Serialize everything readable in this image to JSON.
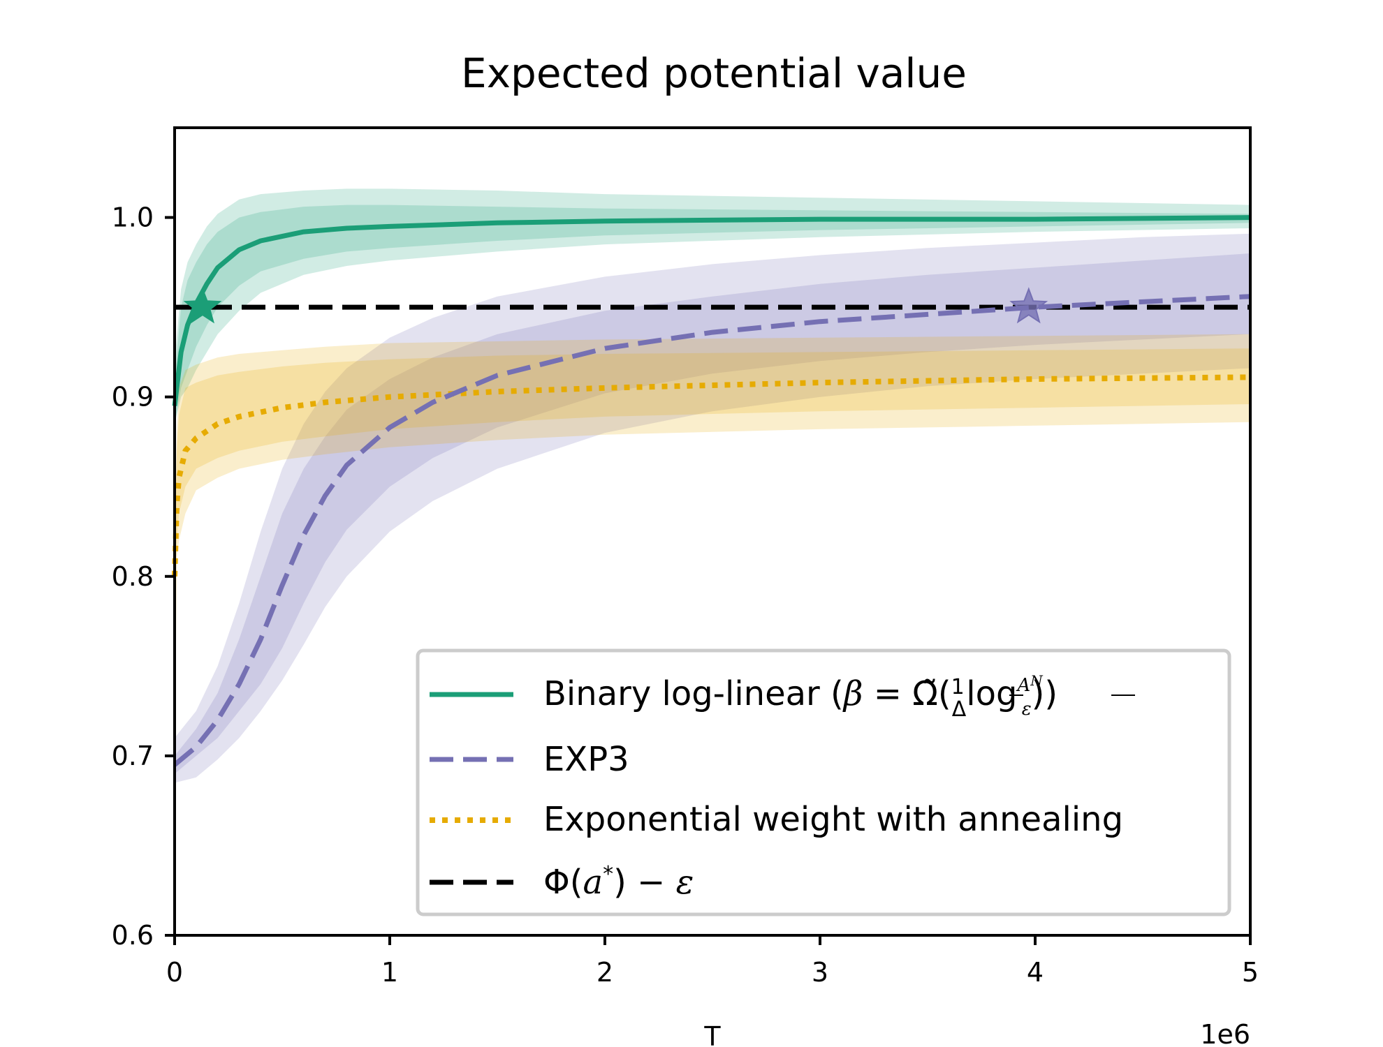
{
  "chart_data": {
    "type": "line",
    "title": "Expected potential value",
    "xlabel": "T",
    "ylabel": "",
    "x_offset_label": "1e6",
    "xlim": [
      0,
      5
    ],
    "ylim": [
      0.6,
      1.05
    ],
    "x_ticks": [
      0,
      1,
      2,
      3,
      4,
      5
    ],
    "x_tick_labels": [
      "0",
      "1",
      "2",
      "3",
      "4",
      "5"
    ],
    "y_ticks": [
      0.6,
      0.7,
      0.8,
      0.9,
      1.0
    ],
    "y_tick_labels": [
      "0.6",
      "0.7",
      "0.8",
      "0.9",
      "1.0"
    ],
    "grid": false,
    "legend_position": "lower-right",
    "series": [
      {
        "name": "Binary log-linear (β = Ω̃(1/Δ log A^N/ε))",
        "style": "solid",
        "color": "#1b9e77",
        "x": [
          0,
          0.03,
          0.06,
          0.1,
          0.15,
          0.2,
          0.3,
          0.4,
          0.6,
          0.8,
          1.0,
          1.5,
          2.0,
          3.0,
          4.0,
          5.0
        ],
        "y": [
          0.895,
          0.925,
          0.94,
          0.952,
          0.963,
          0.972,
          0.982,
          0.987,
          0.992,
          0.994,
          0.995,
          0.997,
          0.998,
          0.999,
          0.999,
          1.0
        ],
        "band_inner": [
          [
            0.91,
            0.885
          ],
          [
            0.95,
            0.905
          ],
          [
            0.965,
            0.915
          ],
          [
            0.975,
            0.928
          ],
          [
            0.985,
            0.94
          ],
          [
            0.992,
            0.95
          ],
          [
            1.0,
            0.962
          ],
          [
            1.003,
            0.97
          ],
          [
            1.006,
            0.977
          ],
          [
            1.007,
            0.981
          ],
          [
            1.007,
            0.983
          ],
          [
            1.006,
            0.987
          ],
          [
            1.005,
            0.99
          ],
          [
            1.004,
            0.993
          ],
          [
            1.003,
            0.995
          ],
          [
            1.002,
            0.997
          ]
        ],
        "band_outer": [
          [
            0.92,
            0.885
          ],
          [
            0.96,
            0.9
          ],
          [
            0.975,
            0.905
          ],
          [
            0.985,
            0.915
          ],
          [
            0.995,
            0.925
          ],
          [
            1.002,
            0.935
          ],
          [
            1.01,
            0.948
          ],
          [
            1.013,
            0.958
          ],
          [
            1.015,
            0.968
          ],
          [
            1.016,
            0.973
          ],
          [
            1.016,
            0.976
          ],
          [
            1.015,
            0.981
          ],
          [
            1.013,
            0.985
          ],
          [
            1.011,
            0.989
          ],
          [
            1.009,
            0.992
          ],
          [
            1.007,
            0.994
          ]
        ],
        "marker": {
          "shape": "star",
          "x": 0.13,
          "y": 0.95
        }
      },
      {
        "name": "EXP3",
        "style": "dashed",
        "color": "#7570b3",
        "x": [
          0,
          0.1,
          0.2,
          0.3,
          0.4,
          0.5,
          0.6,
          0.7,
          0.8,
          1.0,
          1.2,
          1.5,
          2.0,
          2.5,
          3.0,
          3.5,
          4.0,
          4.5,
          5.0
        ],
        "y": [
          0.695,
          0.705,
          0.72,
          0.74,
          0.765,
          0.795,
          0.823,
          0.845,
          0.862,
          0.883,
          0.897,
          0.912,
          0.927,
          0.936,
          0.942,
          0.946,
          0.95,
          0.953,
          0.956
        ],
        "band_inner": [
          [
            0.7,
            0.69
          ],
          [
            0.715,
            0.7
          ],
          [
            0.735,
            0.71
          ],
          [
            0.765,
            0.725
          ],
          [
            0.8,
            0.74
          ],
          [
            0.835,
            0.76
          ],
          [
            0.86,
            0.785
          ],
          [
            0.878,
            0.808
          ],
          [
            0.893,
            0.826
          ],
          [
            0.91,
            0.85
          ],
          [
            0.922,
            0.866
          ],
          [
            0.935,
            0.883
          ],
          [
            0.948,
            0.902
          ],
          [
            0.956,
            0.913
          ],
          [
            0.963,
            0.92
          ],
          [
            0.968,
            0.925
          ],
          [
            0.972,
            0.929
          ],
          [
            0.976,
            0.932
          ],
          [
            0.98,
            0.935
          ]
        ],
        "band_outer": [
          [
            0.71,
            0.685
          ],
          [
            0.725,
            0.688
          ],
          [
            0.75,
            0.698
          ],
          [
            0.785,
            0.71
          ],
          [
            0.825,
            0.725
          ],
          [
            0.86,
            0.742
          ],
          [
            0.885,
            0.762
          ],
          [
            0.903,
            0.783
          ],
          [
            0.916,
            0.8
          ],
          [
            0.933,
            0.825
          ],
          [
            0.944,
            0.842
          ],
          [
            0.956,
            0.86
          ],
          [
            0.967,
            0.88
          ],
          [
            0.974,
            0.892
          ],
          [
            0.979,
            0.9
          ],
          [
            0.983,
            0.906
          ],
          [
            0.986,
            0.91
          ],
          [
            0.989,
            0.913
          ],
          [
            0.991,
            0.916
          ]
        ],
        "marker": {
          "shape": "star",
          "x": 3.97,
          "y": 0.95
        }
      },
      {
        "name": "Exponential weight with annealing",
        "style": "dotted",
        "color": "#e6ab02",
        "x": [
          0,
          0.01,
          0.02,
          0.05,
          0.1,
          0.2,
          0.3,
          0.5,
          0.7,
          1.0,
          1.5,
          2.0,
          3.0,
          4.0,
          5.0
        ],
        "y": [
          0.8,
          0.84,
          0.855,
          0.87,
          0.877,
          0.885,
          0.889,
          0.894,
          0.897,
          0.9,
          0.903,
          0.905,
          0.908,
          0.91,
          0.911
        ],
        "band_inner": [
          [
            0.81,
            0.79
          ],
          [
            0.87,
            0.82
          ],
          [
            0.89,
            0.835
          ],
          [
            0.905,
            0.85
          ],
          [
            0.908,
            0.86
          ],
          [
            0.912,
            0.866
          ],
          [
            0.914,
            0.87
          ],
          [
            0.917,
            0.875
          ],
          [
            0.919,
            0.878
          ],
          [
            0.921,
            0.882
          ],
          [
            0.923,
            0.886
          ],
          [
            0.924,
            0.889
          ],
          [
            0.925,
            0.892
          ],
          [
            0.926,
            0.894
          ],
          [
            0.927,
            0.896
          ]
        ],
        "band_outer": [
          [
            0.82,
            0.675
          ],
          [
            0.88,
            0.81
          ],
          [
            0.905,
            0.82
          ],
          [
            0.915,
            0.835
          ],
          [
            0.918,
            0.848
          ],
          [
            0.922,
            0.855
          ],
          [
            0.924,
            0.86
          ],
          [
            0.926,
            0.865
          ],
          [
            0.928,
            0.868
          ],
          [
            0.93,
            0.872
          ],
          [
            0.931,
            0.876
          ],
          [
            0.932,
            0.879
          ],
          [
            0.933,
            0.882
          ],
          [
            0.934,
            0.884
          ],
          [
            0.935,
            0.886
          ]
        ]
      },
      {
        "name": "Φ(a*) − ε",
        "style": "dashed",
        "color": "#000000",
        "x": [
          0,
          5
        ],
        "y": [
          0.95,
          0.95
        ]
      }
    ]
  }
}
